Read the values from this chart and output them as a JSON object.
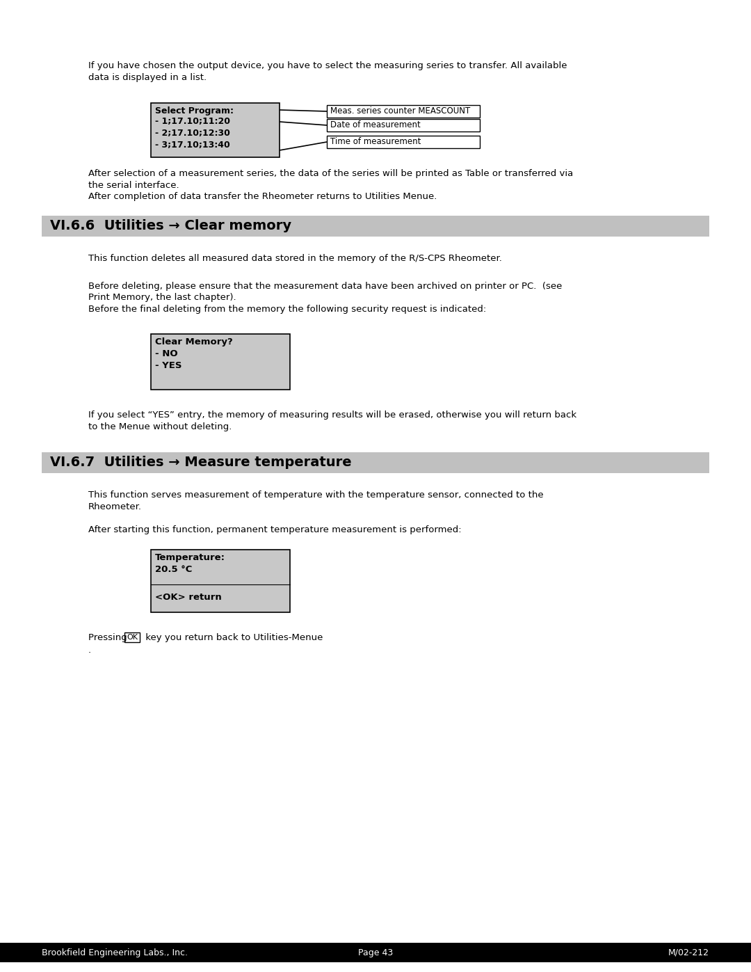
{
  "page_bg": "#ffffff",
  "footer_bg": "#000000",
  "footer_text_color": "#ffffff",
  "footer_left": "Brookfield Engineering Labs., Inc.",
  "footer_center": "Page 43",
  "footer_right": "M/02-212",
  "footer_fontsize": 9,
  "section1_title": "VI.6.6  Utilities → Clear memory",
  "section2_title": "VI.6.7  Utilities → Measure temperature",
  "section_bg": "#c0c0c0",
  "section_title_fontsize": 14,
  "body_fontsize": 9.5,
  "body_color": "#000000",
  "intro_text": "If you have chosen the output device, you have to select the measuring series to transfer. All available\ndata is displayed in a list.",
  "select_box_title": "Select Program:",
  "select_box_lines": [
    "- 1;17.10;11:20",
    "- 2;17.10;12:30",
    "- 3;17.10;13:40"
  ],
  "select_box_bg": "#c8c8c8",
  "select_box_border": "#000000",
  "label1": "Meas. series counter MEASCOUNT",
  "label2": "Date of measurement",
  "label3": "Time of measurement",
  "after_select_text": "After selection of a measurement series, the data of the series will be printed as Table or transferred via\nthe serial interface.\nAfter completion of data transfer the Rheometer returns to Utilities Menue.",
  "sec1_para1": "This function deletes all measured data stored in the memory of the R/S-CPS Rheometer.",
  "sec1_para2": "Before deleting, please ensure that the measurement data have been archived on printer or PC.  (see\nPrint Memory, the last chapter).\nBefore the final deleting from the memory the following security request is indicated:",
  "clear_box_title": "Clear Memory?",
  "clear_box_lines": [
    "- NO",
    "- YES"
  ],
  "clear_box_bg": "#c8c8c8",
  "clear_box_border": "#000000",
  "sec1_para3": "If you select “YES” entry, the memory of measuring results will be erased, otherwise you will return back\nto the Menue without deleting.",
  "sec2_para1": "This function serves measurement of temperature with the temperature sensor, connected to the\nRheometer.",
  "sec2_para2": "After starting this function, permanent temperature measurement is performed:",
  "temp_box_lines": [
    "Temperature:",
    "20.5 °C",
    "",
    "<OK> return"
  ],
  "temp_box_bg": "#c8c8c8",
  "temp_box_border": "#000000",
  "pressing_text_pre": "Pressing ",
  "pressing_ok": "OK",
  "pressing_text_post": " key you return back to Utilities-Menue",
  "pressing_dot": "."
}
